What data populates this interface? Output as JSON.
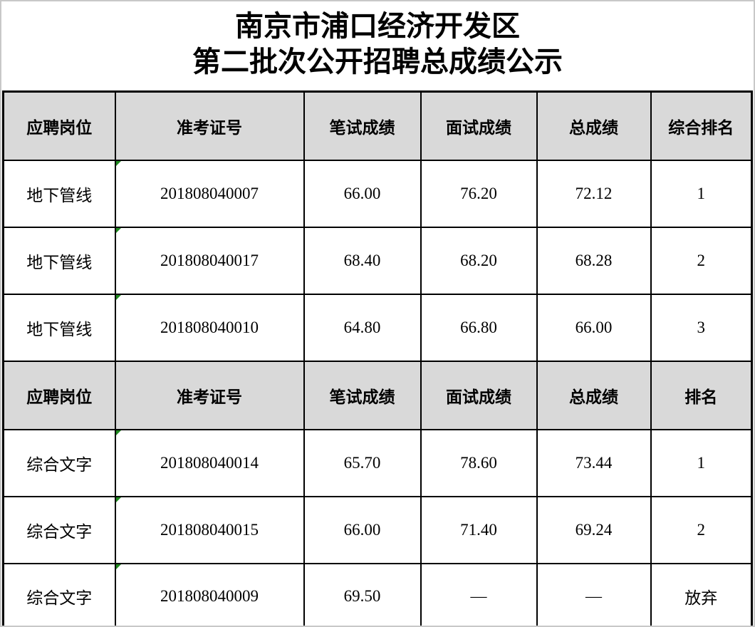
{
  "page": {
    "title_line1": "南京市浦口经济开发区",
    "title_line2": "第二批次公开招聘总成绩公示"
  },
  "colors": {
    "header_bg": "#d9d9d9",
    "table_border": "#000000",
    "page_edge": "#c8c8c8",
    "text_indicator_green": "#1f8a1f"
  },
  "table": {
    "green_triangle_column": 1,
    "sections": [
      {
        "columns": [
          "应聘岗位",
          "准考证号",
          "笔试成绩",
          "面试成绩",
          "总成绩",
          "综合排名"
        ],
        "rows": [
          [
            "地下管线",
            "201808040007",
            "66.00",
            "76.20",
            "72.12",
            "1"
          ],
          [
            "地下管线",
            "201808040017",
            "68.40",
            "68.20",
            "68.28",
            "2"
          ],
          [
            "地下管线",
            "201808040010",
            "64.80",
            "66.80",
            "66.00",
            "3"
          ]
        ]
      },
      {
        "columns": [
          "应聘岗位",
          "准考证号",
          "笔试成绩",
          "面试成绩",
          "总成绩",
          "排名"
        ],
        "rows": [
          [
            "综合文字",
            "201808040014",
            "65.70",
            "78.60",
            "73.44",
            "1"
          ],
          [
            "综合文字",
            "201808040015",
            "66.00",
            "71.40",
            "69.24",
            "2"
          ],
          [
            "综合文字",
            "201808040009",
            "69.50",
            "—",
            "—",
            "放弃"
          ]
        ]
      }
    ]
  }
}
